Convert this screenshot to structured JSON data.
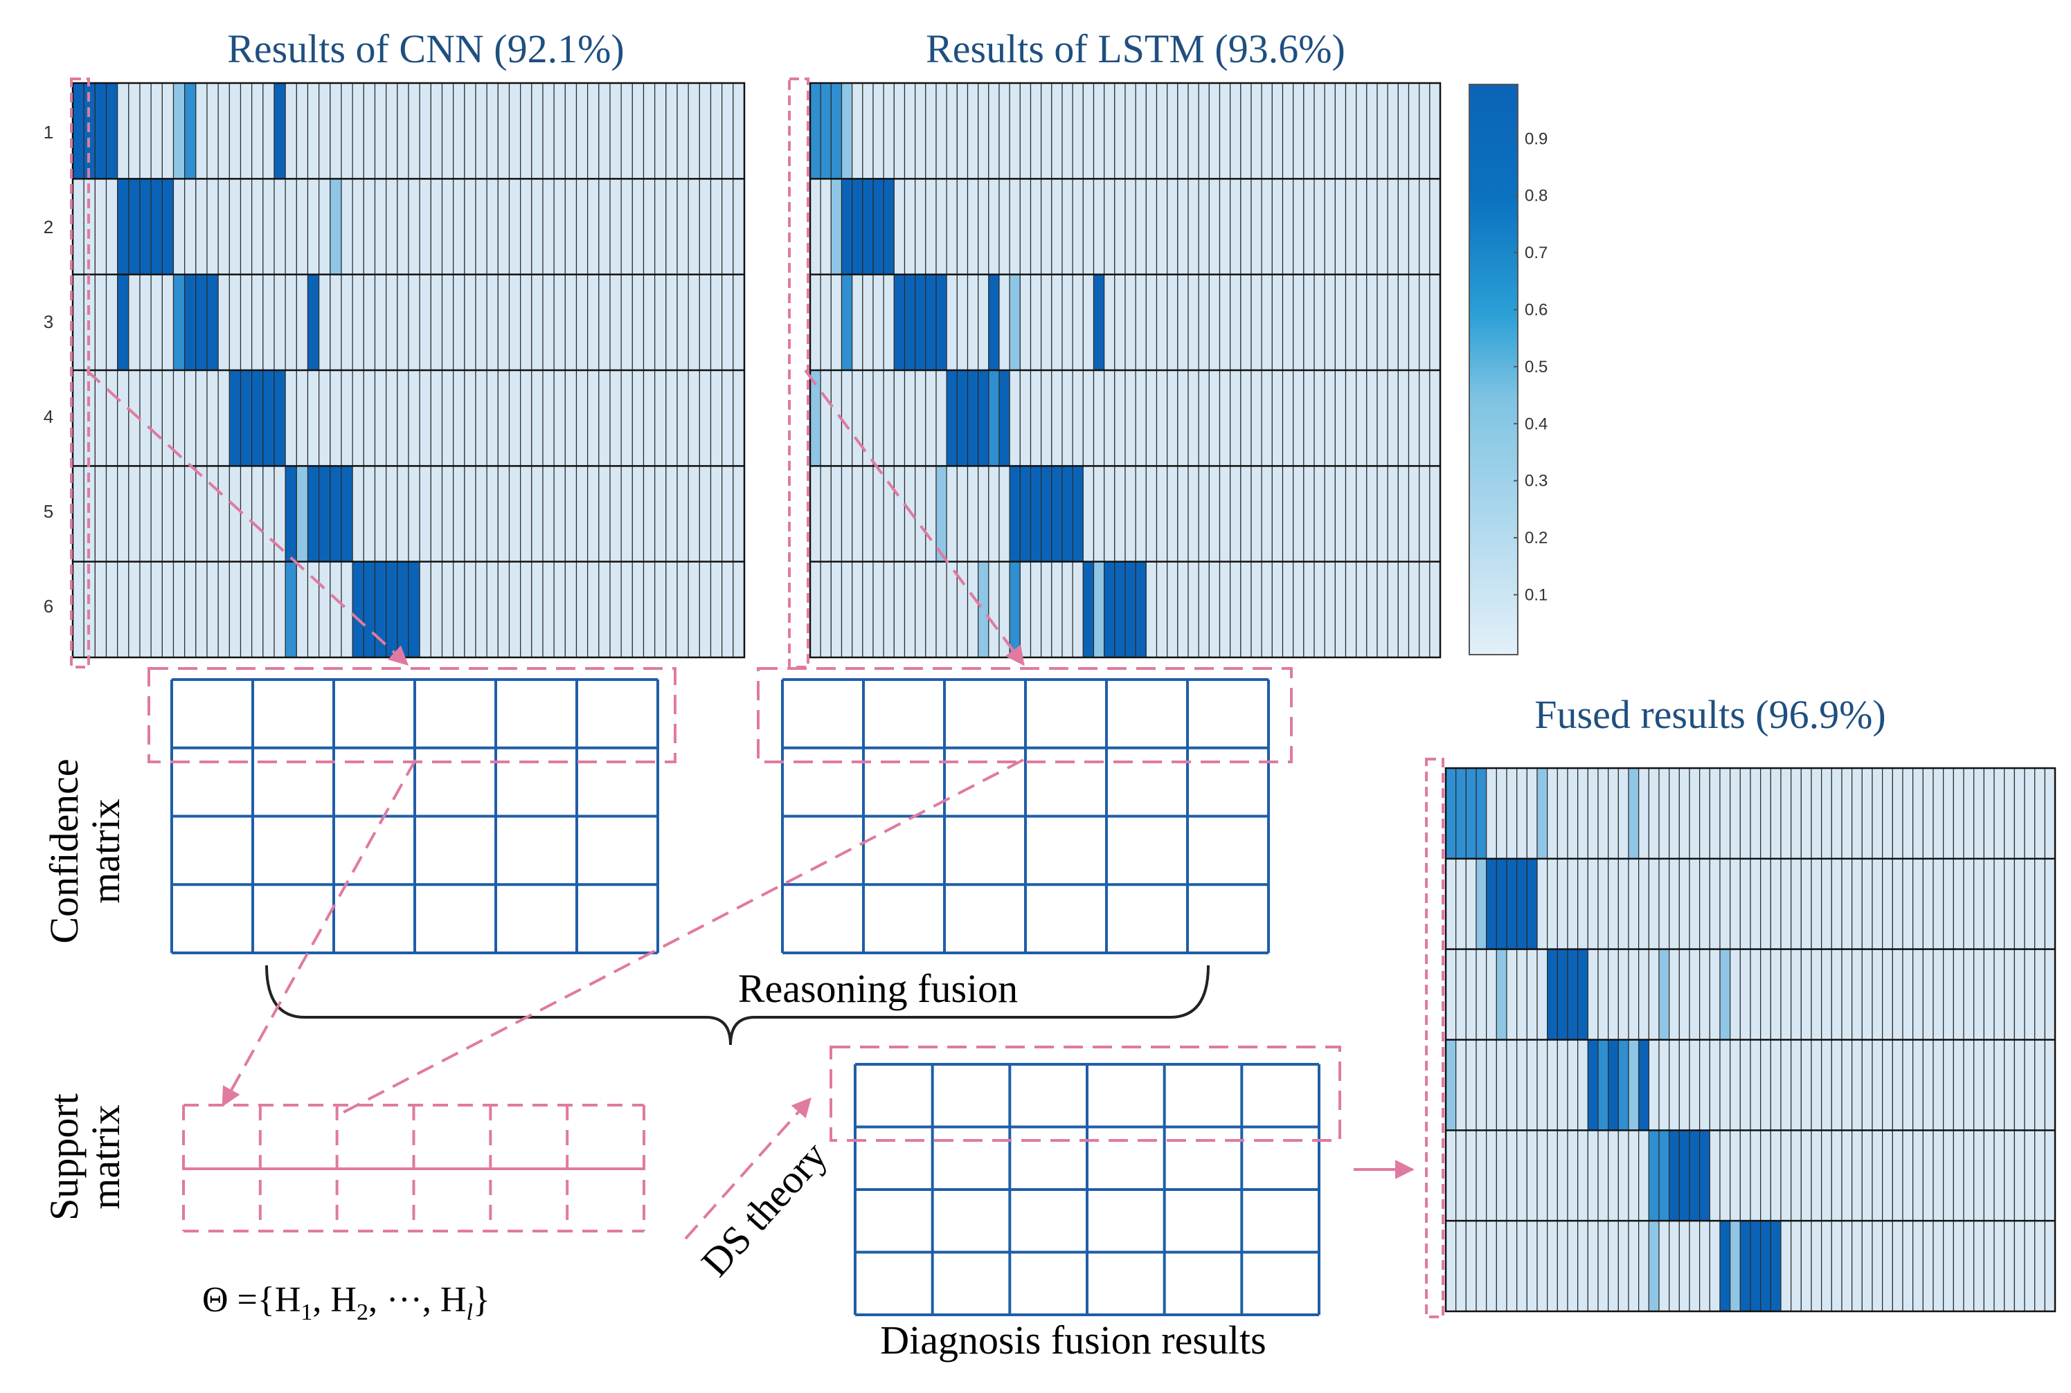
{
  "cnn": {
    "title": "Results of CNN (92.1%)",
    "row_labels": [
      "1",
      "2",
      "3",
      "4",
      "5",
      "6"
    ]
  },
  "lstm": {
    "title": "Results of LSTM (93.6%)"
  },
  "fused": {
    "title": "Fused results (96.9%)"
  },
  "colorbar": {
    "ticks": [
      "0.9",
      "0.8",
      "0.7",
      "0.6",
      "0.5",
      "0.4",
      "0.3",
      "0.2",
      "0.1"
    ],
    "colors": {
      "low": "#deedf7",
      "mid": "#4fb0d9",
      "high": "#0b63b7"
    }
  },
  "labels": {
    "confidence_line1": "Confidence",
    "confidence_line2": "matrix",
    "support_line1": "Support",
    "support_line2": "matrix",
    "reasoning_fusion": "Reasoning fusion",
    "ds_theory": "DS theory",
    "diagnosis_fusion": "Diagnosis fusion results",
    "theta_prefix": "Θ ={H",
    "theta_sub1": "1",
    "theta_sep1": ",  H",
    "theta_sub2": "2",
    "theta_sep2": ",  ···,  H",
    "theta_subl": "l",
    "theta_suffix": "}"
  },
  "style_colors": {
    "grid_line": "#1f5ea8",
    "dashed_pink": "#e07aa0",
    "heat_border": "#333333"
  }
}
